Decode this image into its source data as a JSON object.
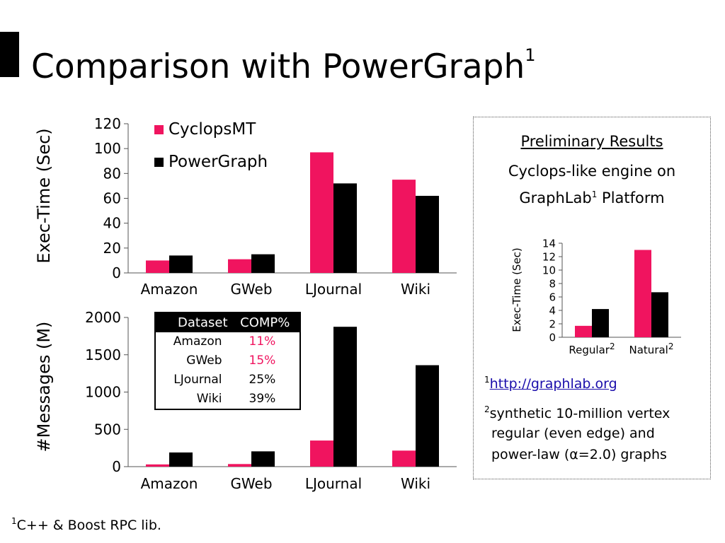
{
  "slide": {
    "title": "Comparison with PowerGraph",
    "title_sup": "1",
    "footnote_sup": "1",
    "footnote": "C++ & Boost RPC lib."
  },
  "colors": {
    "cyclops": "#f0145f",
    "powergraph": "#000000",
    "axis": "#555555"
  },
  "legend": [
    "CyclopsMT",
    "PowerGraph"
  ],
  "chart_data": [
    {
      "type": "bar",
      "ylabel": "Exec-Time (Sec)",
      "categories": [
        "Amazon",
        "GWeb",
        "LJournal",
        "Wiki"
      ],
      "series": [
        {
          "name": "CyclopsMT",
          "values": [
            10,
            11,
            97,
            75
          ]
        },
        {
          "name": "PowerGraph",
          "values": [
            14,
            15,
            72,
            62
          ]
        }
      ],
      "yticks": [
        "0",
        "20",
        "40",
        "60",
        "80",
        "100",
        "120"
      ],
      "ylim": [
        0,
        120
      ]
    },
    {
      "type": "bar",
      "ylabel": "#Messages (M)",
      "categories": [
        "Amazon",
        "GWeb",
        "LJournal",
        "Wiki"
      ],
      "series": [
        {
          "name": "CyclopsMT",
          "values": [
            30,
            35,
            350,
            215
          ]
        },
        {
          "name": "PowerGraph",
          "values": [
            190,
            205,
            1875,
            1360
          ]
        }
      ],
      "yticks": [
        "0",
        "500",
        "1000",
        "1500",
        "2000"
      ],
      "ylim": [
        0,
        2000
      ]
    },
    {
      "type": "bar",
      "ylabel": "Exec-Time (Sec)",
      "categories": [
        "Regular",
        "Natural"
      ],
      "category_sup": "2",
      "series": [
        {
          "name": "CyclopsMT",
          "values": [
            1.7,
            13.0
          ]
        },
        {
          "name": "PowerGraph",
          "values": [
            4.2,
            6.7
          ]
        }
      ],
      "yticks": [
        "0",
        "2",
        "4",
        "6",
        "8",
        "10",
        "12",
        "14"
      ],
      "ylim": [
        0,
        14
      ]
    }
  ],
  "table": {
    "headers": [
      "Dataset",
      "COMP%"
    ],
    "rows": [
      {
        "dataset": "Amazon",
        "comp": "11%",
        "highlight": true
      },
      {
        "dataset": "GWeb",
        "comp": "15%",
        "highlight": true
      },
      {
        "dataset": "LJournal",
        "comp": "25%",
        "highlight": false
      },
      {
        "dataset": "Wiki",
        "comp": "39%",
        "highlight": false
      }
    ]
  },
  "panel": {
    "heading": "Preliminary Results",
    "line1": "Cyclops-like engine on",
    "line2_a": "GraphLab",
    "line2_sup": "1",
    "line2_b": " Platform",
    "fn1_sup": "1",
    "fn1_link": "http://graphlab.org",
    "fn2_sup": "2",
    "fn2_lines": [
      "synthetic 10-million vertex",
      "regular (even edge) and",
      "power-law (α=2.0) graphs"
    ]
  }
}
